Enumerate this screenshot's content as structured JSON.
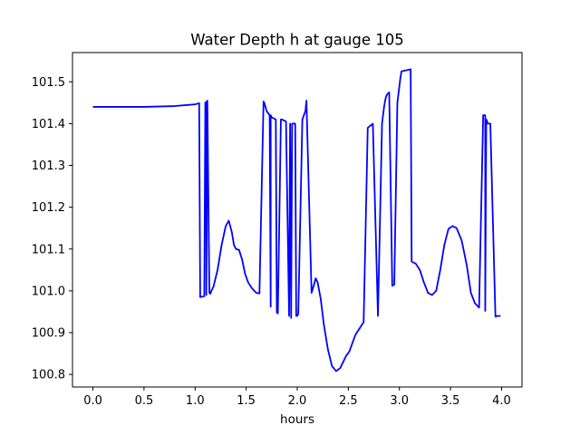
{
  "chart_data": {
    "type": "line",
    "title": "Water Depth h at gauge 105",
    "xlabel": "hours",
    "ylabel": "",
    "xlim": [
      -0.2,
      4.2
    ],
    "ylim": [
      100.77,
      101.57
    ],
    "xticks": [
      0.0,
      0.5,
      1.0,
      1.5,
      2.0,
      2.5,
      3.0,
      3.5,
      4.0
    ],
    "xtick_labels": [
      "0.0",
      "0.5",
      "1.0",
      "1.5",
      "2.0",
      "2.5",
      "3.0",
      "3.5",
      "4.0"
    ],
    "yticks": [
      100.8,
      100.9,
      101.0,
      101.1,
      101.2,
      101.3,
      101.4,
      101.5
    ],
    "ytick_labels": [
      "100.8",
      "100.9",
      "101.0",
      "101.1",
      "101.2",
      "101.3",
      "101.4",
      "101.5"
    ],
    "grid": false,
    "series": [
      {
        "color": "#0000ff",
        "x": [
          0.0,
          0.5,
          0.8,
          1.0,
          1.04,
          1.05,
          1.09,
          1.1,
          1.11,
          1.11,
          1.12,
          1.14,
          1.15,
          1.16,
          1.18,
          1.22,
          1.26,
          1.3,
          1.33,
          1.36,
          1.38,
          1.4,
          1.43,
          1.46,
          1.49,
          1.52,
          1.56,
          1.6,
          1.63,
          1.67,
          1.68,
          1.7,
          1.73,
          1.74,
          1.74,
          1.75,
          1.79,
          1.8,
          1.81,
          1.84,
          1.85,
          1.89,
          1.92,
          1.93,
          1.94,
          1.95,
          1.98,
          1.99,
          2.0,
          2.01,
          2.05,
          2.08,
          2.09,
          2.14,
          2.17,
          2.18,
          2.2,
          2.23,
          2.26,
          2.3,
          2.34,
          2.38,
          2.42,
          2.45,
          2.48,
          2.51,
          2.54,
          2.57,
          2.61,
          2.65,
          2.69,
          2.74,
          2.79,
          2.83,
          2.84,
          2.85,
          2.86,
          2.87,
          2.88,
          2.9,
          2.93,
          2.95,
          2.98,
          2.99,
          3.0,
          3.01,
          3.02,
          3.11,
          3.12,
          3.16,
          3.2,
          3.24,
          3.28,
          3.32,
          3.36,
          3.4,
          3.44,
          3.48,
          3.52,
          3.56,
          3.61,
          3.66,
          3.7,
          3.74,
          3.78,
          3.82,
          3.84,
          3.84,
          3.85,
          3.86,
          3.86,
          3.89,
          3.94,
          3.96,
          3.97,
          3.99
        ],
        "y": [
          101.44,
          101.44,
          101.442,
          101.446,
          101.449,
          100.985,
          100.987,
          101.45,
          101.452,
          100.99,
          101.455,
          100.995,
          100.993,
          101.0,
          101.01,
          101.05,
          101.11,
          101.155,
          101.168,
          101.14,
          101.11,
          101.1,
          101.098,
          101.075,
          101.04,
          101.02,
          101.005,
          100.995,
          100.994,
          101.453,
          101.448,
          101.43,
          101.42,
          100.962,
          101.42,
          101.415,
          101.41,
          100.948,
          100.946,
          101.41,
          101.41,
          101.405,
          100.94,
          101.4,
          100.935,
          101.4,
          101.4,
          100.94,
          100.94,
          100.945,
          101.41,
          101.43,
          101.455,
          100.995,
          101.02,
          101.03,
          101.02,
          100.98,
          100.92,
          100.86,
          100.82,
          100.808,
          100.815,
          100.83,
          100.845,
          100.855,
          100.875,
          100.895,
          100.91,
          100.925,
          101.39,
          101.4,
          100.94,
          101.4,
          101.42,
          101.44,
          101.455,
          101.465,
          101.47,
          101.475,
          101.012,
          101.015,
          101.45,
          101.47,
          101.49,
          101.51,
          101.525,
          101.53,
          101.07,
          101.065,
          101.05,
          101.02,
          100.995,
          100.99,
          101.0,
          101.05,
          101.11,
          101.148,
          101.155,
          101.15,
          101.12,
          101.06,
          100.995,
          100.97,
          100.96,
          101.42,
          101.42,
          100.952,
          101.41,
          101.405,
          101.4,
          101.4,
          100.938,
          100.94,
          100.94,
          100.94
        ]
      }
    ]
  }
}
